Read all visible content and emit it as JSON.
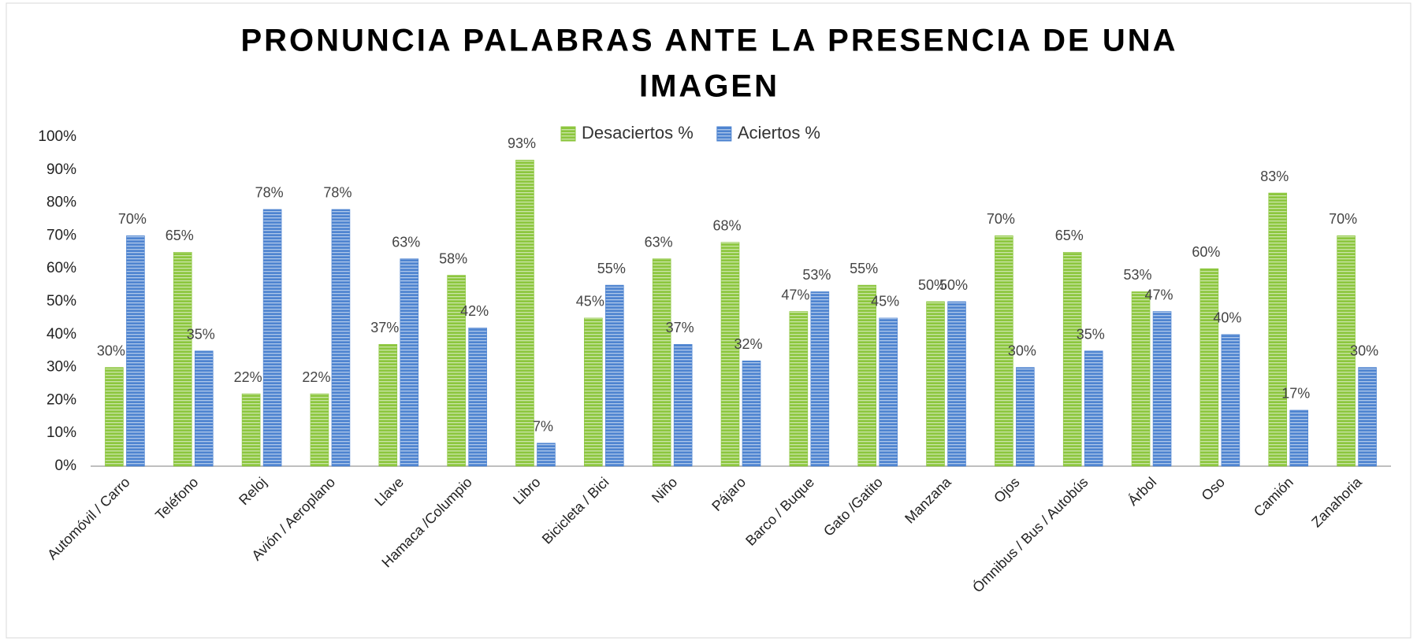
{
  "chart_data": {
    "type": "bar",
    "title_lines": [
      "PRONUNCIA PALABRAS ANTE LA PRESENCIA DE UNA",
      "IMAGEN"
    ],
    "categories": [
      "Automóvil / Carro",
      "Teléfono",
      "Reloj",
      "Avión / Aeroplano",
      "Llave",
      "Hamaca /Columpio",
      "Libro",
      "Bicicleta / Bici",
      "Niño",
      "Pájaro",
      "Barco / Buque",
      "Gato /Gatito",
      "Manzana",
      "Ojos",
      "Ómnibus / Bus / Autobús",
      "Árbol",
      "Oso",
      "Camión",
      "Zanahoria"
    ],
    "series": [
      {
        "name": "Desaciertos  %",
        "color": "#8cc63e",
        "values": [
          30,
          65,
          22,
          22,
          37,
          58,
          93,
          45,
          63,
          68,
          47,
          55,
          50,
          70,
          65,
          53,
          60,
          83,
          70
        ],
        "value_labels": [
          "30%",
          "65%",
          "22%",
          "22%",
          "37%",
          "58%",
          "93%",
          "45%",
          "63%",
          "68%",
          "47%",
          "55%",
          "50%",
          "70%",
          "65%",
          "53%",
          "60%",
          "83%",
          "70%"
        ]
      },
      {
        "name": "Aciertos %",
        "color": "#4e84d0",
        "values": [
          70,
          35,
          78,
          78,
          63,
          42,
          7,
          55,
          37,
          32,
          53,
          45,
          50,
          30,
          35,
          47,
          40,
          17,
          30
        ],
        "value_labels": [
          "70%",
          "35%",
          "78%",
          "78%",
          "63%",
          "42%",
          "7%",
          "55%",
          "37%",
          "32%",
          "53%",
          "45%",
          "50%",
          "30%",
          "35%",
          "47%",
          "40%",
          "17%",
          "30%"
        ]
      }
    ],
    "ylim": [
      0,
      100
    ],
    "yticks": [
      {
        "value": 0,
        "label": "0%"
      },
      {
        "value": 10,
        "label": "10%"
      },
      {
        "value": 20,
        "label": "20%"
      },
      {
        "value": 30,
        "label": "30%"
      },
      {
        "value": 40,
        "label": "40%"
      },
      {
        "value": 50,
        "label": "50%"
      },
      {
        "value": 60,
        "label": "60%"
      },
      {
        "value": 70,
        "label": "70%"
      },
      {
        "value": 80,
        "label": "80%"
      },
      {
        "value": 90,
        "label": "90%"
      },
      {
        "value": 100,
        "label": "100%"
      }
    ],
    "grid": false,
    "legend": "top"
  }
}
